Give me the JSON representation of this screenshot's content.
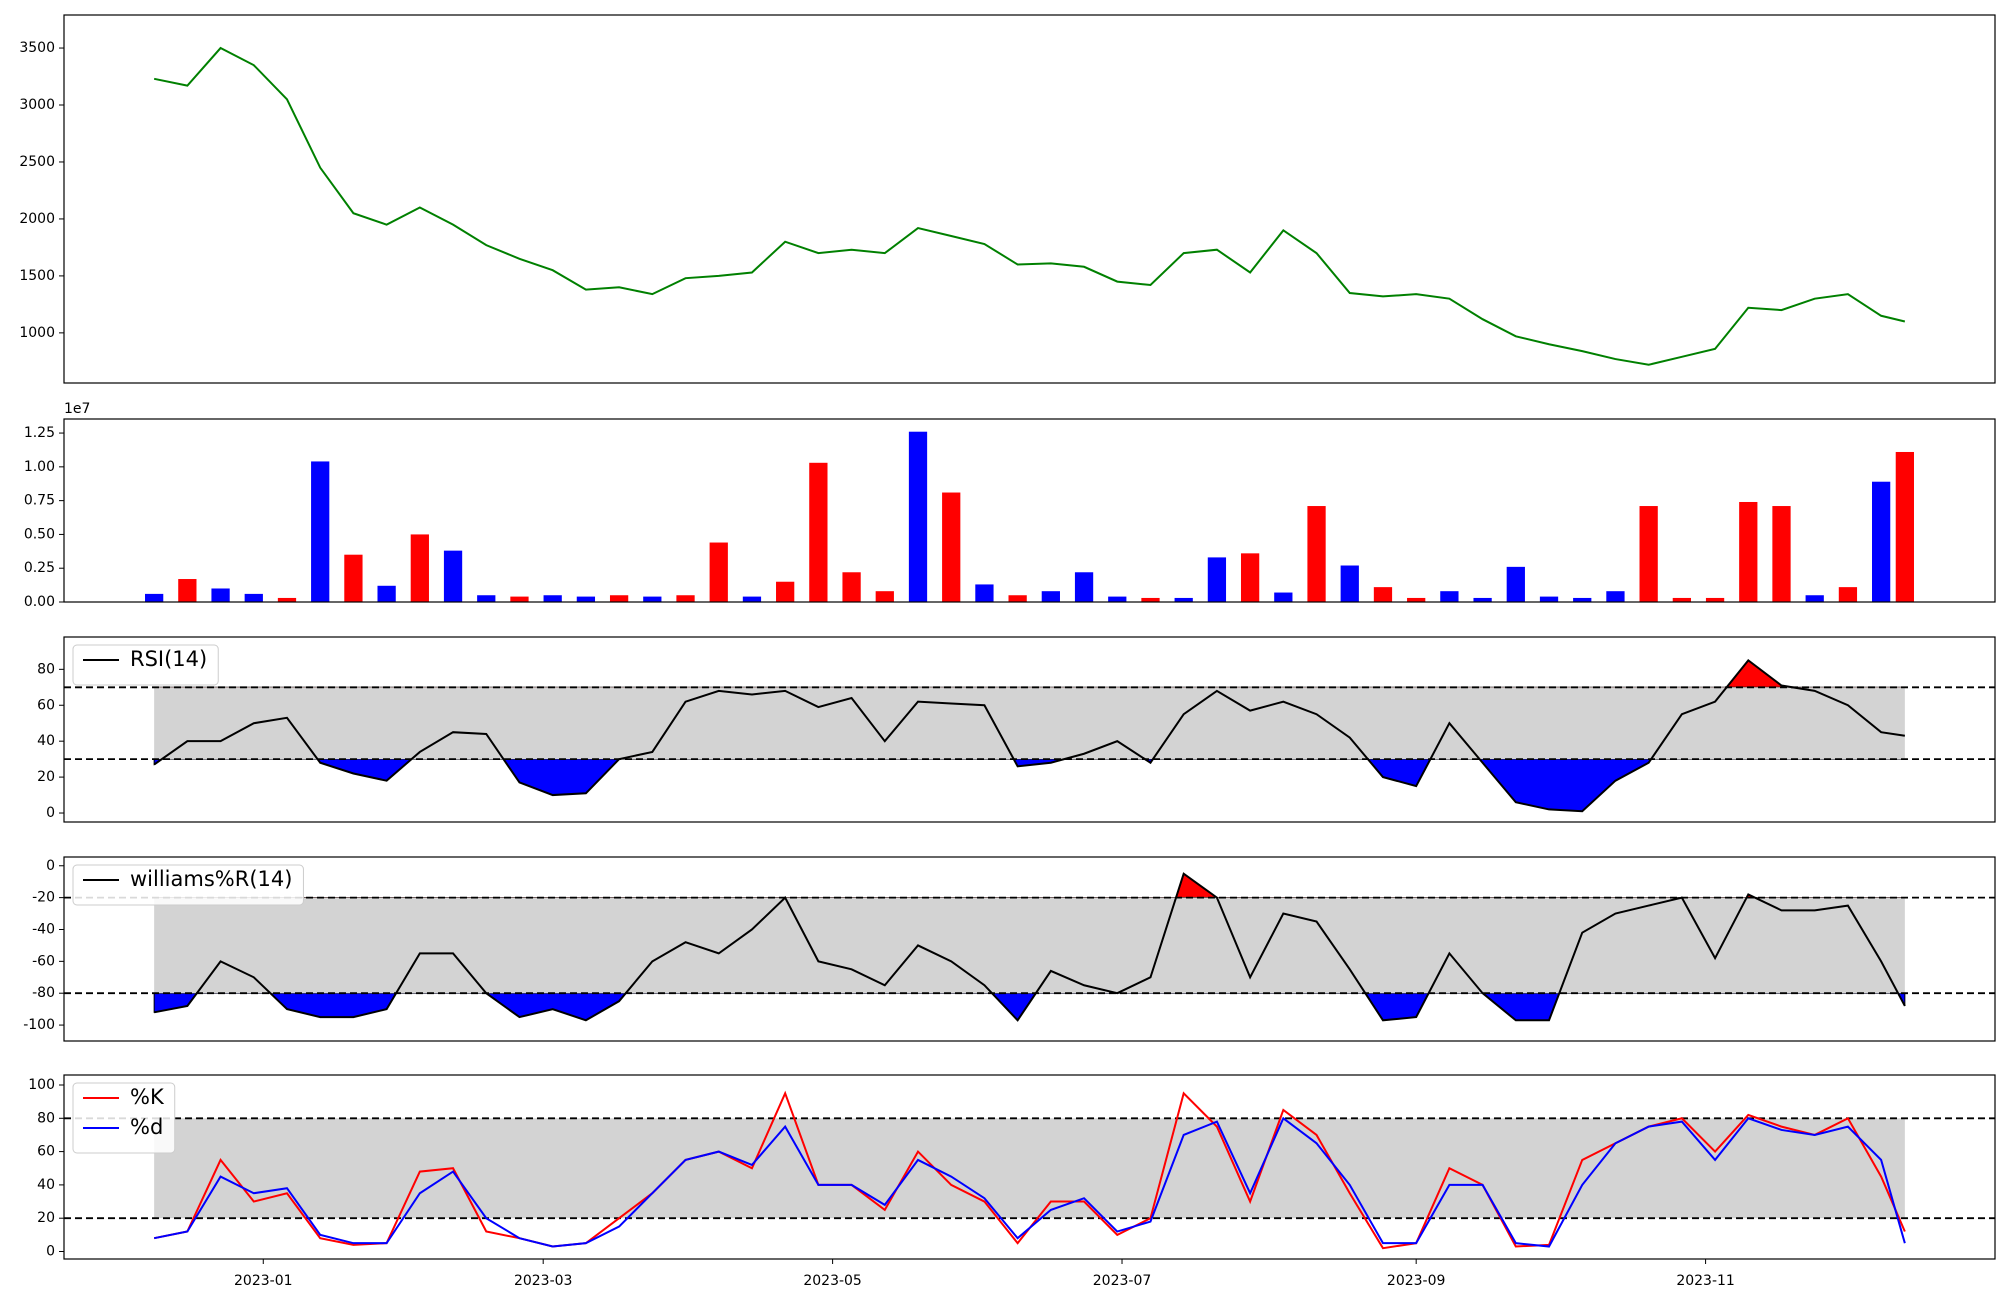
{
  "chart_data": [
    {
      "type": "line",
      "xlim": [
        0,
        407
      ],
      "ylim": [
        560,
        3790
      ],
      "yticks": [
        1000,
        1500,
        2000,
        2500,
        3000,
        3500
      ],
      "x": [
        19,
        26,
        33,
        40,
        47,
        54,
        61,
        68,
        75,
        82,
        89,
        96,
        103,
        110,
        117,
        124,
        131,
        138,
        145,
        152,
        159,
        166,
        173,
        180,
        187,
        194,
        201,
        208,
        215,
        222,
        229,
        236,
        243,
        250,
        257,
        264,
        271,
        278,
        285,
        292,
        299,
        306,
        313,
        320,
        327,
        334,
        341,
        348,
        355,
        362,
        369,
        376,
        383,
        388
      ],
      "series": [
        {
          "color": "green",
          "values": [
            3230,
            3170,
            3500,
            3350,
            3050,
            2450,
            2050,
            1950,
            2100,
            1950,
            1770,
            1650,
            1550,
            1380,
            1400,
            1340,
            1480,
            1500,
            1530,
            1800,
            1700,
            1730,
            1700,
            1920,
            1850,
            1780,
            1600,
            1610,
            1580,
            1450,
            1420,
            1700,
            1730,
            1530,
            1900,
            1700,
            1350,
            1320,
            1340,
            1300,
            1120,
            970,
            900,
            840,
            770,
            720,
            790,
            860,
            1220,
            1200,
            1300,
            1340,
            1150,
            1100
          ]
        }
      ]
    },
    {
      "type": "bar",
      "xlim": [
        0,
        407
      ],
      "ylim": [
        0,
        13540000
      ],
      "y_offset_label": "1e7",
      "yticks": [
        {
          "value": 0,
          "label": "0.00"
        },
        {
          "value": 2500000,
          "label": "0.25"
        },
        {
          "value": 5000000,
          "label": "0.50"
        },
        {
          "value": 7500000,
          "label": "0.75"
        },
        {
          "value": 10000000,
          "label": "1.00"
        },
        {
          "value": 12500000,
          "label": "1.25"
        }
      ],
      "x": [
        19,
        26,
        33,
        40,
        47,
        54,
        61,
        68,
        75,
        82,
        89,
        96,
        103,
        110,
        117,
        124,
        131,
        138,
        145,
        152,
        159,
        166,
        173,
        180,
        187,
        194,
        201,
        208,
        215,
        222,
        229,
        236,
        243,
        250,
        257,
        264,
        271,
        278,
        285,
        292,
        299,
        306,
        313,
        320,
        327,
        334,
        341,
        348,
        355,
        362,
        369,
        376,
        383,
        388
      ],
      "values": [
        600000,
        1700000,
        1000000,
        600000,
        300000,
        10400000,
        3500000,
        1200000,
        5000000,
        3800000,
        500000,
        400000,
        500000,
        400000,
        500000,
        400000,
        500000,
        4400000,
        400000,
        1500000,
        10300000,
        2200000,
        800000,
        12600000,
        8100000,
        1300000,
        500000,
        800000,
        2200000,
        400000,
        300000,
        300000,
        3300000,
        3600000,
        700000,
        7100000,
        2700000,
        1100000,
        300000,
        800000,
        300000,
        2600000,
        400000,
        300000,
        800000,
        7100000,
        300000,
        300000,
        7400000,
        7100000,
        500000,
        1100000,
        8900000,
        11100000
      ],
      "colors": [
        "blue",
        "red",
        "blue",
        "blue",
        "red",
        "blue",
        "red",
        "blue",
        "red",
        "blue",
        "blue",
        "red",
        "blue",
        "blue",
        "red",
        "blue",
        "red",
        "red",
        "blue",
        "red",
        "red",
        "red",
        "red",
        "blue",
        "red",
        "blue",
        "red",
        "blue",
        "blue",
        "blue",
        "red",
        "blue",
        "blue",
        "red",
        "blue",
        "red",
        "blue",
        "red",
        "red",
        "blue",
        "blue",
        "blue",
        "blue",
        "blue",
        "blue",
        "red",
        "red",
        "red",
        "red",
        "red",
        "blue",
        "red",
        "blue",
        "red"
      ]
    },
    {
      "type": "line",
      "xlim": [
        0,
        407
      ],
      "ylim": [
        -5,
        98
      ],
      "yticks": [
        0,
        20,
        40,
        60,
        80
      ],
      "hlines": [
        30,
        70
      ],
      "band_color": "#d3d3d3",
      "fill_below": {
        "level": 30,
        "color": "blue"
      },
      "fill_above": {
        "level": 70,
        "color": "red"
      },
      "legend": "upper left",
      "x": [
        19,
        26,
        33,
        40,
        47,
        54,
        61,
        68,
        75,
        82,
        89,
        96,
        103,
        110,
        117,
        124,
        131,
        138,
        145,
        152,
        159,
        166,
        173,
        180,
        187,
        194,
        201,
        208,
        215,
        222,
        229,
        236,
        243,
        250,
        257,
        264,
        271,
        278,
        285,
        292,
        299,
        306,
        313,
        320,
        327,
        334,
        341,
        348,
        355,
        362,
        369,
        376,
        383,
        388
      ],
      "series": [
        {
          "name": "RSI(14)",
          "color": "black",
          "values": [
            27,
            40,
            40,
            50,
            53,
            28,
            22,
            18,
            34,
            45,
            44,
            17,
            10,
            11,
            30,
            34,
            62,
            68,
            66,
            68,
            59,
            64,
            40,
            62,
            61,
            60,
            26,
            28,
            33,
            40,
            28,
            55,
            68,
            57,
            62,
            55,
            42,
            20,
            15,
            50,
            28,
            6,
            2,
            1,
            18,
            28,
            55,
            62,
            85,
            71,
            68,
            60,
            45,
            43
          ]
        }
      ]
    },
    {
      "type": "line",
      "xlim": [
        0,
        407
      ],
      "ylim": [
        -110,
        5.5
      ],
      "yticks": [
        -100,
        -80,
        -60,
        -40,
        -20,
        0
      ],
      "hlines": [
        -80,
        -20
      ],
      "band_color": "#d3d3d3",
      "fill_below": {
        "level": -80,
        "color": "blue"
      },
      "fill_above": {
        "level": -20,
        "color": "red"
      },
      "legend": "upper left",
      "x": [
        19,
        26,
        33,
        40,
        47,
        54,
        61,
        68,
        75,
        82,
        89,
        96,
        103,
        110,
        117,
        124,
        131,
        138,
        145,
        152,
        159,
        166,
        173,
        180,
        187,
        194,
        201,
        208,
        215,
        222,
        229,
        236,
        243,
        250,
        257,
        264,
        271,
        278,
        285,
        292,
        299,
        306,
        313,
        320,
        327,
        334,
        341,
        348,
        355,
        362,
        369,
        376,
        383,
        388
      ],
      "series": [
        {
          "name": "williams%R(14)",
          "color": "black",
          "values": [
            -92,
            -88,
            -60,
            -70,
            -90,
            -95,
            -95,
            -90,
            -55,
            -55,
            -80,
            -95,
            -90,
            -97,
            -85,
            -60,
            -48,
            -55,
            -40,
            -20,
            -60,
            -65,
            -75,
            -50,
            -60,
            -75,
            -97,
            -66,
            -75,
            -80,
            -70,
            -5,
            -20,
            -70,
            -30,
            -35,
            -65,
            -97,
            -95,
            -55,
            -80,
            -97,
            -97,
            -42,
            -30,
            -25,
            -20,
            -58,
            -18,
            -28,
            -28,
            -25,
            -60,
            -88
          ]
        }
      ]
    },
    {
      "type": "line",
      "xlim": [
        0,
        407
      ],
      "ylim": [
        -4.5,
        106
      ],
      "yticks": [
        0,
        20,
        40,
        60,
        80,
        100
      ],
      "hlines": [
        20,
        80
      ],
      "band_color": "#d3d3d3",
      "legend": "upper left",
      "xticks": [
        {
          "value": 42,
          "label": "2023-01"
        },
        {
          "value": 101,
          "label": "2023-03"
        },
        {
          "value": 162,
          "label": "2023-05"
        },
        {
          "value": 223,
          "label": "2023-07"
        },
        {
          "value": 285,
          "label": "2023-09"
        },
        {
          "value": 346,
          "label": "2023-11"
        }
      ],
      "x": [
        19,
        26,
        33,
        40,
        47,
        54,
        61,
        68,
        75,
        82,
        89,
        96,
        103,
        110,
        117,
        124,
        131,
        138,
        145,
        152,
        159,
        166,
        173,
        180,
        187,
        194,
        201,
        208,
        215,
        222,
        229,
        236,
        243,
        250,
        257,
        264,
        271,
        278,
        285,
        292,
        299,
        306,
        313,
        320,
        327,
        334,
        341,
        348,
        355,
        362,
        369,
        376,
        383,
        388
      ],
      "series": [
        {
          "name": "%K",
          "color": "red",
          "values": [
            8,
            12,
            55,
            30,
            35,
            8,
            4,
            5,
            48,
            50,
            12,
            8,
            3,
            5,
            20,
            35,
            55,
            60,
            50,
            95,
            40,
            40,
            25,
            60,
            40,
            30,
            5,
            30,
            30,
            10,
            20,
            95,
            75,
            30,
            85,
            70,
            35,
            2,
            5,
            50,
            40,
            3,
            4,
            55,
            65,
            75,
            80,
            60,
            82,
            75,
            70,
            80,
            45,
            12
          ]
        },
        {
          "name": "%d",
          "color": "blue",
          "values": [
            8,
            12,
            45,
            35,
            38,
            10,
            5,
            5,
            35,
            48,
            20,
            8,
            3,
            5,
            15,
            35,
            55,
            60,
            52,
            75,
            40,
            40,
            28,
            55,
            45,
            32,
            8,
            25,
            32,
            12,
            18,
            70,
            78,
            35,
            80,
            65,
            40,
            5,
            5,
            40,
            40,
            5,
            3,
            40,
            65,
            75,
            78,
            55,
            80,
            73,
            70,
            75,
            55,
            5
          ]
        }
      ]
    }
  ]
}
